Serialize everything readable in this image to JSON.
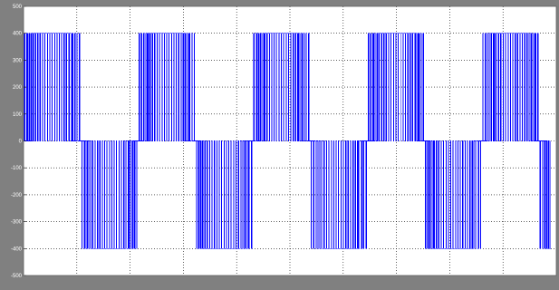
{
  "colors": {
    "figure_background": "#808080",
    "axes_background": "#ffffff",
    "signal": "#0000ff",
    "grid": "#000000",
    "tick_text": "#ffffff"
  },
  "chart_data": {
    "type": "line",
    "title": "",
    "xlabel": "",
    "ylabel": "",
    "ylim": [
      -500,
      500
    ],
    "yticks": [
      "500",
      "400",
      "300",
      "200",
      "100",
      "0",
      "-100",
      "-200",
      "-300",
      "-400",
      "-500"
    ],
    "grid": true,
    "grid_style": "dotted",
    "x_grid_divisions": 10,
    "xlim": [
      0,
      9.3
    ],
    "series": [
      {
        "waveform": "pwm",
        "amplitude": 400,
        "period": 2,
        "positive_half_cycle_start": 0,
        "switching_pulses_per_half_cycle": 24,
        "cycles_shown": 4.6
      }
    ]
  }
}
